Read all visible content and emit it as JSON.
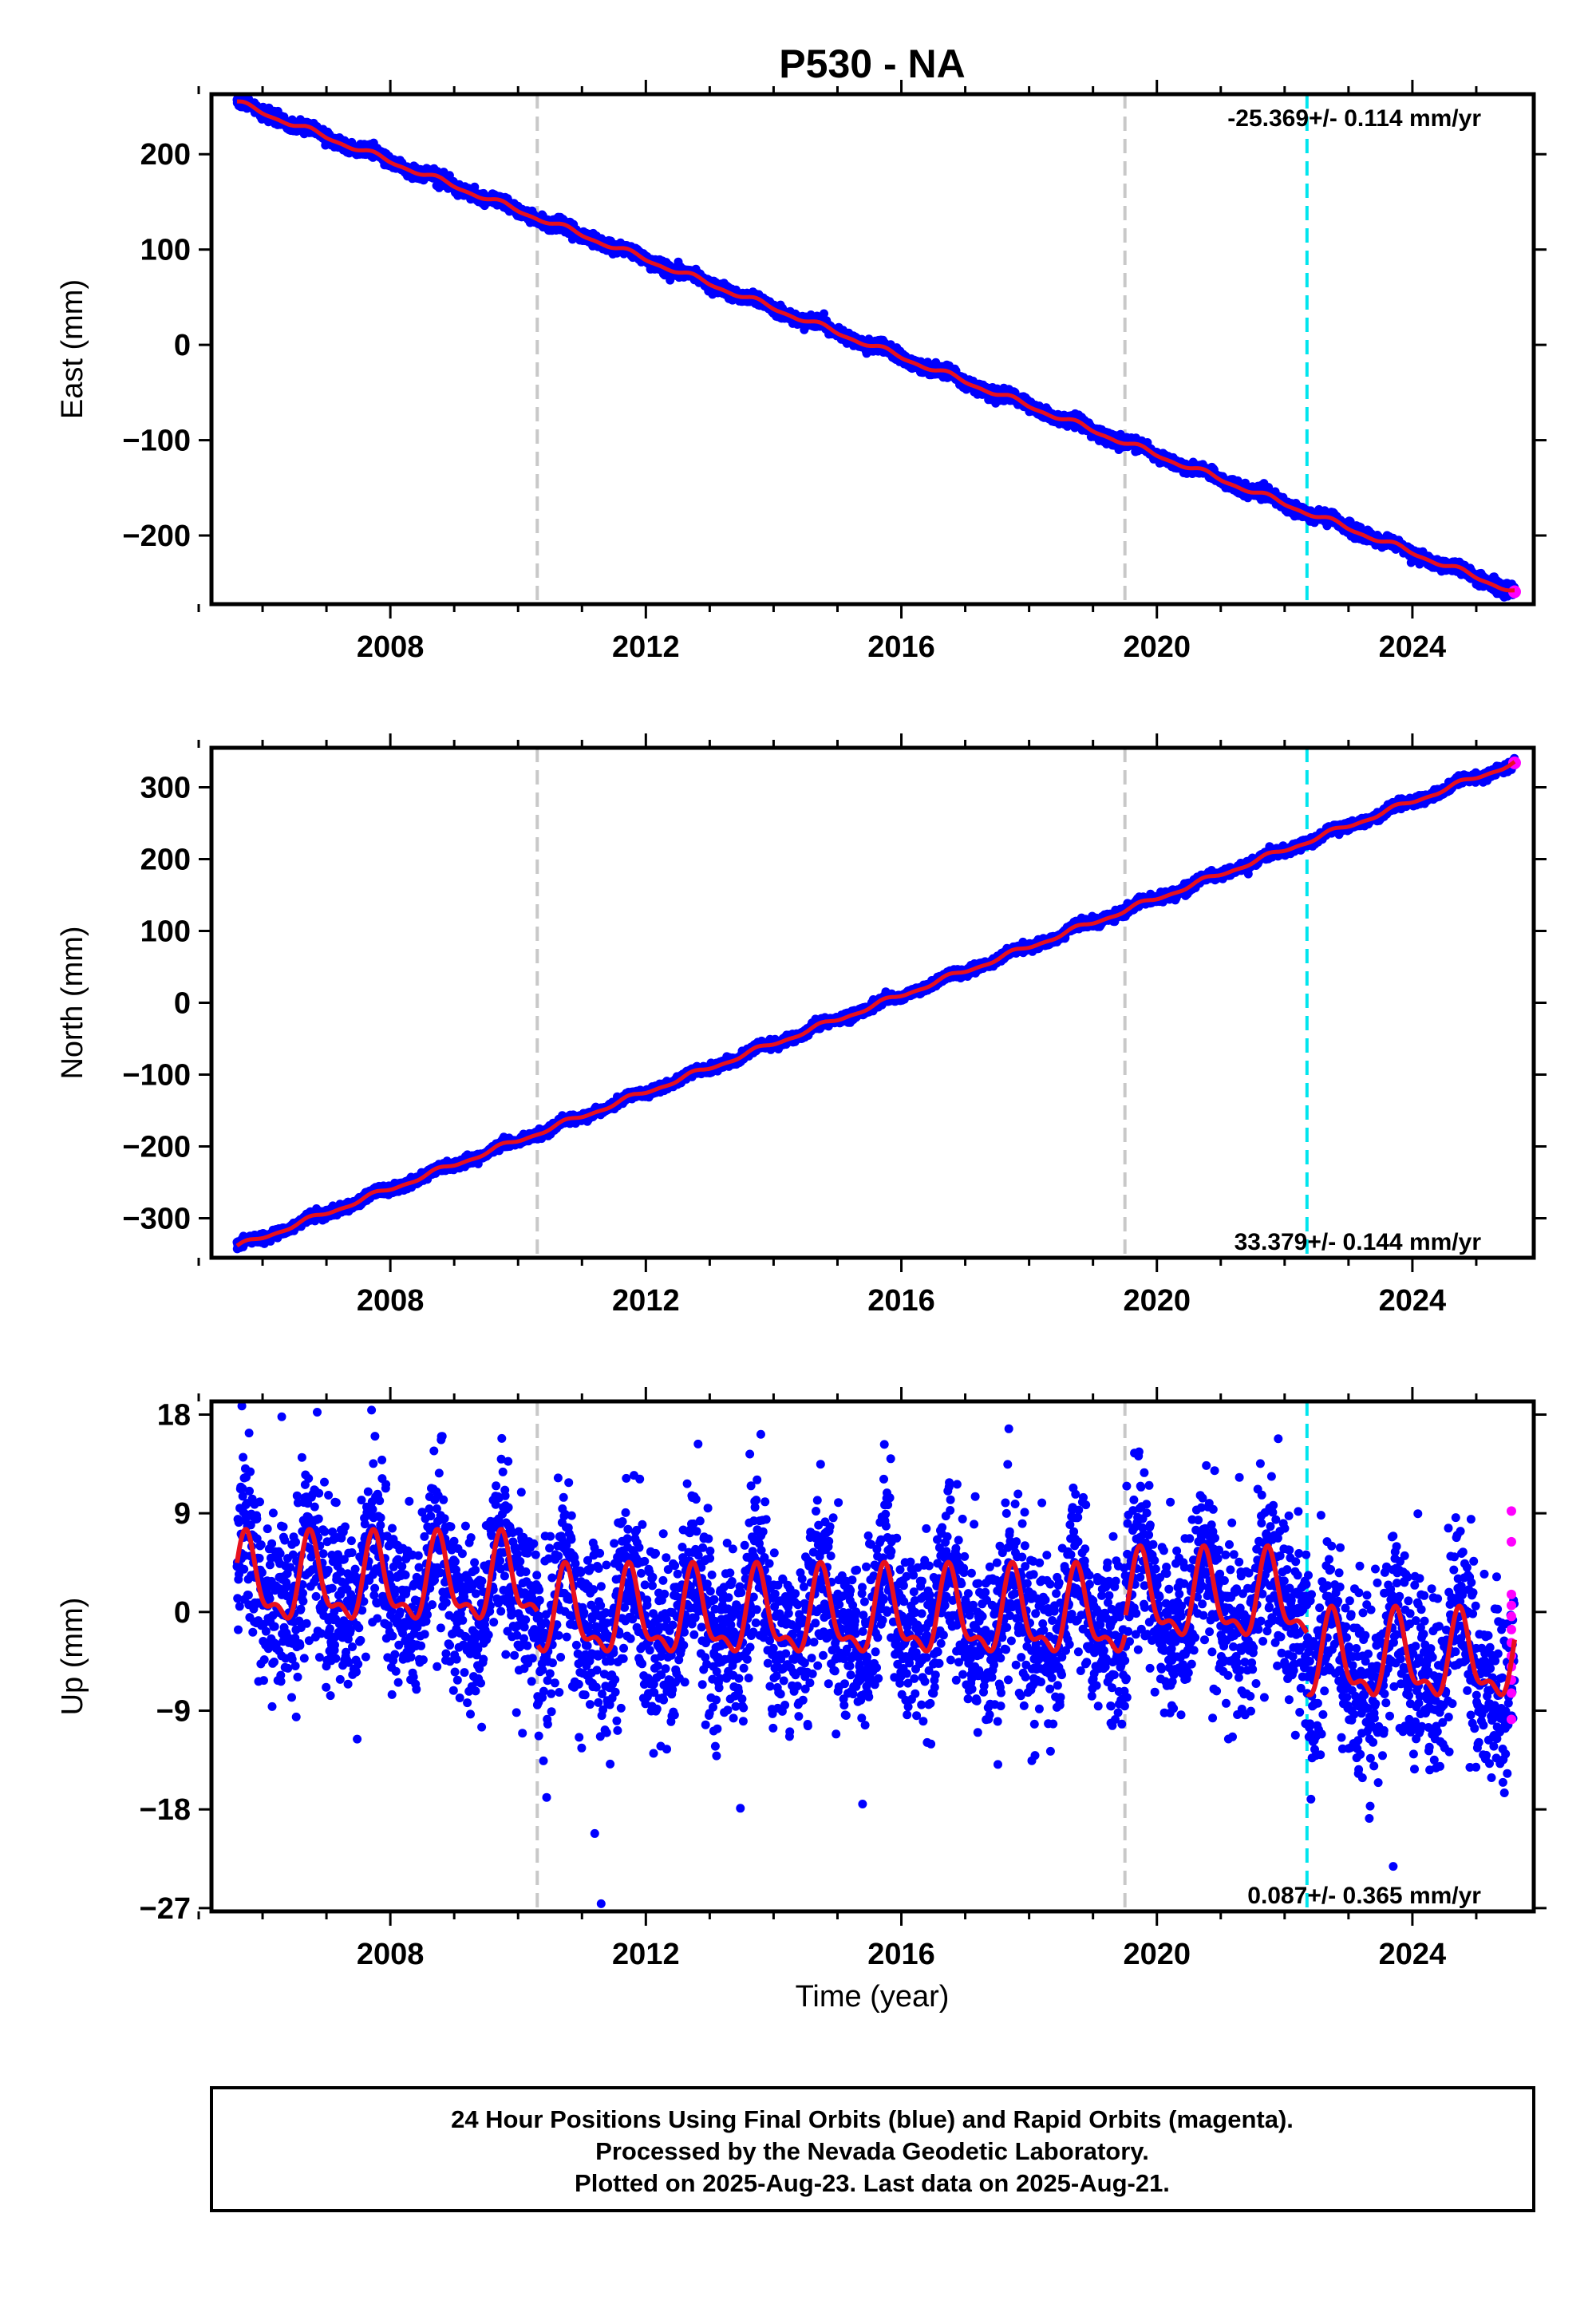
{
  "page_title": "P530 - NA",
  "colors": {
    "final_orbits": "#0000ff",
    "rapid_orbits": "#ff00ff",
    "model_fit": "#e8101e",
    "event_gray": "#c8c8c8",
    "event_cyan": "#00e5ee",
    "frame": "#000000"
  },
  "xlabel": "Time (year)",
  "x_ticks": [
    2008,
    2012,
    2016,
    2020,
    2024
  ],
  "xlim": [
    2005.2,
    2025.9
  ],
  "event_lines": [
    {
      "x": 2010.3,
      "color": "gray"
    },
    {
      "x": 2019.5,
      "color": "gray"
    },
    {
      "x": 2022.35,
      "color": "cyan"
    }
  ],
  "footer": {
    "line1": "24 Hour Positions Using Final Orbits (blue) and Rapid Orbits (magenta).",
    "line2": "Processed by the Nevada Geodetic Laboratory.",
    "line3": "Plotted on 2025-Aug-23. Last data on 2025-Aug-21."
  },
  "chart_data": [
    {
      "type": "scatter",
      "component": "east",
      "ylabel": "East (mm)",
      "rate_label": "-25.369+/- 0.114 mm/yr",
      "ylim": [
        -272,
        263
      ],
      "y_ticks": [
        200,
        100,
        0,
        -100,
        -200
      ],
      "y_tick_labels": [
        "200",
        "100",
        "0",
        "−100",
        "−200"
      ],
      "start": {
        "x": 2005.6,
        "y": 254
      },
      "end": {
        "x": 2025.6,
        "y": -259
      },
      "seasonal_amplitude": 2.5,
      "scatter": 3
    },
    {
      "type": "scatter",
      "component": "north",
      "ylabel": "North (mm)",
      "rate_label": "33.379+/- 0.144 mm/yr",
      "ylim": [
        -355,
        355
      ],
      "y_ticks": [
        300,
        200,
        100,
        0,
        -100,
        -200,
        -300
      ],
      "y_tick_labels": [
        "300",
        "200",
        "100",
        "0",
        "−100",
        "−200",
        "−300"
      ],
      "start": {
        "x": 2005.6,
        "y": -340
      },
      "end": {
        "x": 2025.6,
        "y": 334
      },
      "seasonal_amplitude": 3,
      "scatter": 3
    },
    {
      "type": "scatter",
      "component": "up",
      "ylabel": "Up (mm)",
      "rate_label": "0.087+/- 0.365 mm/yr",
      "ylim": [
        -27.3,
        19.2
      ],
      "y_ticks": [
        18,
        9,
        0,
        -9,
        -18,
        -27
      ],
      "y_tick_labels": [
        "18",
        "9",
        "0",
        "−9",
        "−18",
        "−27"
      ],
      "offsets": [
        {
          "from": 2005.6,
          "to": 2010.3,
          "level": 2.5
        },
        {
          "from": 2010.3,
          "to": 2019.5,
          "level": -0.5
        },
        {
          "from": 2019.5,
          "to": 2022.35,
          "level": 1.0
        },
        {
          "from": 2022.35,
          "to": 2025.6,
          "level": -4.5
        }
      ],
      "seasonal_amplitude": 3.5,
      "scatter": 4,
      "rapid_points": [
        {
          "x": 2025.55,
          "y": 9.2
        },
        {
          "x": 2025.55,
          "y": 6.4
        },
        {
          "x": 2025.55,
          "y": 1.6
        },
        {
          "x": 2025.55,
          "y": 0.6
        },
        {
          "x": 2025.55,
          "y": -0.4
        },
        {
          "x": 2025.55,
          "y": -1.6
        },
        {
          "x": 2025.55,
          "y": -2.8
        },
        {
          "x": 2025.55,
          "y": -4.0
        },
        {
          "x": 2025.55,
          "y": -5.0
        },
        {
          "x": 2025.55,
          "y": -6.2
        },
        {
          "x": 2025.55,
          "y": -7.4
        },
        {
          "x": 2025.55,
          "y": -9.8
        }
      ],
      "outliers": [
        {
          "x": 2006.3,
          "y": 17.8
        },
        {
          "x": 2013.8,
          "y": 16.2
        },
        {
          "x": 2021.9,
          "y": 15.8
        },
        {
          "x": 2011.2,
          "y": -20.2
        },
        {
          "x": 2023.7,
          "y": -23.2
        },
        {
          "x": 2011.3,
          "y": -26.6
        }
      ]
    }
  ]
}
